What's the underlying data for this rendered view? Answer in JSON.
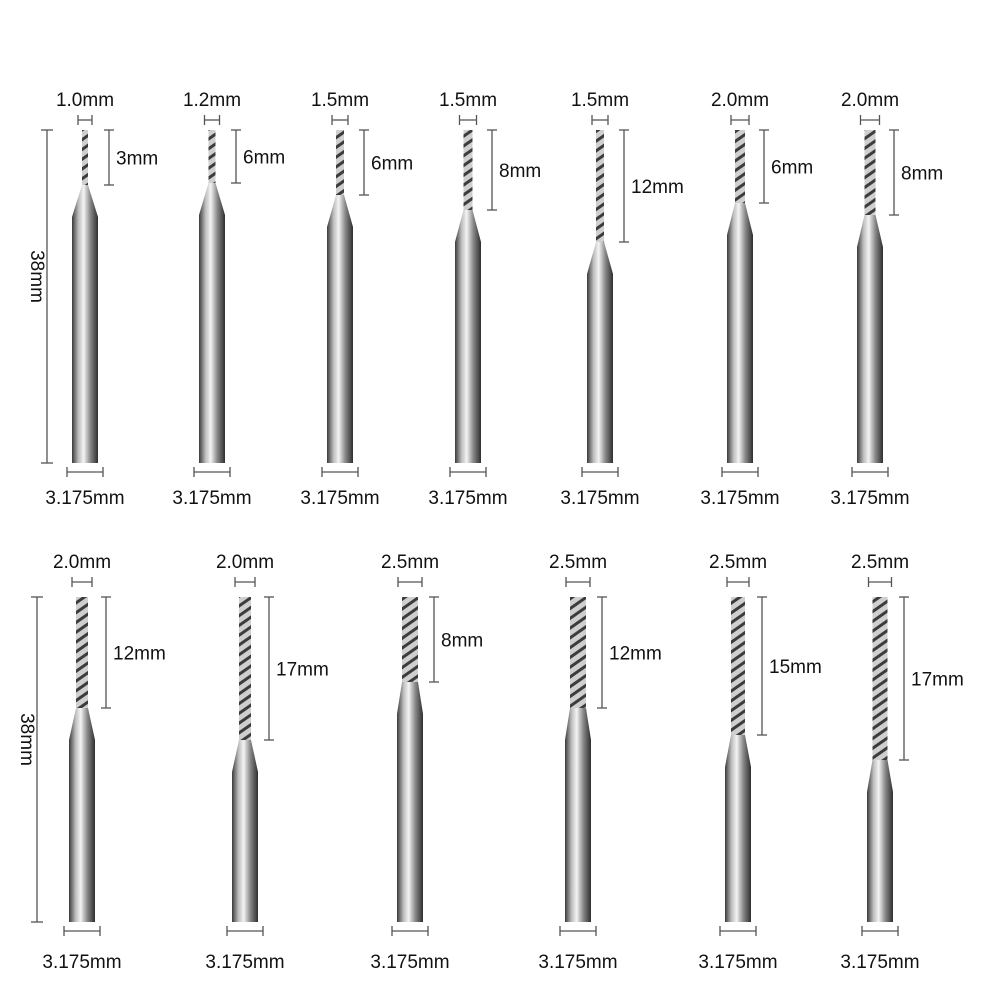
{
  "overall_length_label": "38mm",
  "rows": [
    {
      "bits": [
        {
          "diameter": "1.0mm",
          "flute_length": "3mm",
          "shank": "3.175mm"
        },
        {
          "diameter": "1.2mm",
          "flute_length": "6mm",
          "shank": "3.175mm"
        },
        {
          "diameter": "1.5mm",
          "flute_length": "6mm",
          "shank": "3.175mm"
        },
        {
          "diameter": "1.5mm",
          "flute_length": "8mm",
          "shank": "3.175mm"
        },
        {
          "diameter": "1.5mm",
          "flute_length": "12mm",
          "shank": "3.175mm"
        },
        {
          "diameter": "2.0mm",
          "flute_length": "6mm",
          "shank": "3.175mm"
        },
        {
          "diameter": "2.0mm",
          "flute_length": "8mm",
          "shank": "3.175mm"
        }
      ]
    },
    {
      "bits": [
        {
          "diameter": "2.0mm",
          "flute_length": "12mm",
          "shank": "3.175mm"
        },
        {
          "diameter": "2.0mm",
          "flute_length": "17mm",
          "shank": "3.175mm"
        },
        {
          "diameter": "2.5mm",
          "flute_length": "8mm",
          "shank": "3.175mm"
        },
        {
          "diameter": "2.5mm",
          "flute_length": "12mm",
          "shank": "3.175mm"
        },
        {
          "diameter": "2.5mm",
          "flute_length": "15mm",
          "shank": "3.175mm"
        },
        {
          "diameter": "2.5mm",
          "flute_length": "17mm",
          "shank": "3.175mm"
        }
      ]
    }
  ]
}
